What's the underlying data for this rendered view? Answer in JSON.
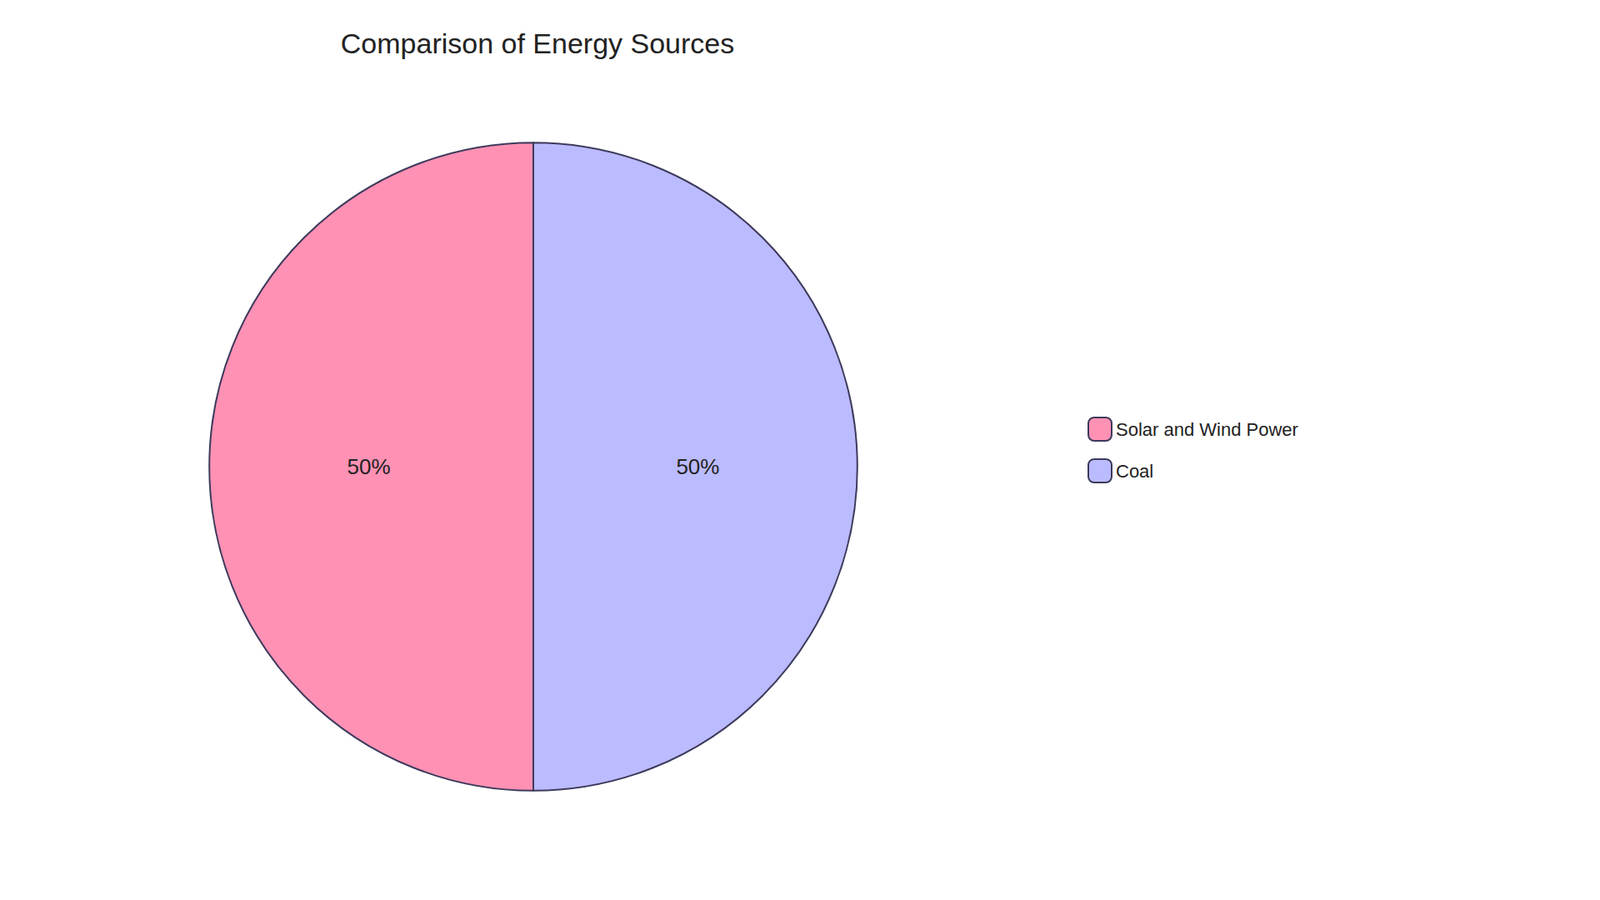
{
  "chart_data": {
    "type": "pie",
    "title": "Comparison of Energy Sources",
    "categories": [
      "Solar and Wind Power",
      "Coal"
    ],
    "values": [
      50,
      50
    ],
    "value_labels": [
      "50%",
      "50%"
    ],
    "colors": [
      "#FF91B4",
      "#BBBBFF"
    ],
    "data_labels": true,
    "legend": "right"
  }
}
